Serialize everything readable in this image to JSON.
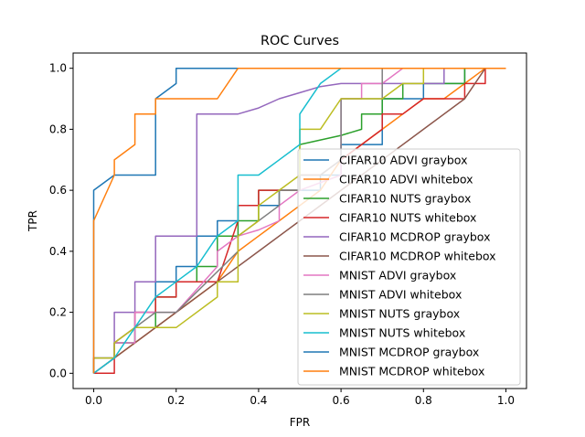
{
  "chart_data": {
    "type": "line",
    "title": "ROC Curves",
    "xlabel": "FPR",
    "ylabel": "TPR",
    "xlim": [
      -0.05,
      1.05
    ],
    "ylim": [
      -0.05,
      1.05
    ],
    "xticks": [
      "0.0",
      "0.2",
      "0.4",
      "0.6",
      "0.8",
      "1.0"
    ],
    "yticks": [
      "0.0",
      "0.2",
      "0.4",
      "0.6",
      "0.8",
      "1.0"
    ],
    "grid": false,
    "legend_position": "lower-right",
    "series": [
      {
        "name": "CIFAR10 ADVI graybox",
        "color": "#1f77b4",
        "points": [
          [
            0,
            0
          ],
          [
            0,
            0.05
          ],
          [
            0.05,
            0.05
          ],
          [
            0.05,
            0.1
          ],
          [
            0.1,
            0.1
          ],
          [
            0.1,
            0.2
          ],
          [
            0.15,
            0.2
          ],
          [
            0.15,
            0.3
          ],
          [
            0.2,
            0.3
          ],
          [
            0.2,
            0.35
          ],
          [
            0.25,
            0.35
          ],
          [
            0.25,
            0.45
          ],
          [
            0.3,
            0.45
          ],
          [
            0.3,
            0.5
          ],
          [
            0.35,
            0.5
          ],
          [
            0.35,
            0.55
          ],
          [
            0.45,
            0.55
          ],
          [
            0.45,
            0.6
          ],
          [
            0.55,
            0.6
          ],
          [
            0.55,
            0.65
          ],
          [
            0.6,
            0.65
          ],
          [
            0.6,
            0.75
          ],
          [
            0.7,
            0.75
          ],
          [
            0.7,
            0.9
          ],
          [
            0.8,
            0.9
          ],
          [
            0.8,
            0.95
          ],
          [
            0.9,
            0.95
          ],
          [
            0.9,
            1
          ],
          [
            1,
            1
          ]
        ]
      },
      {
        "name": "CIFAR10 ADVI whitebox",
        "color": "#ff7f0e",
        "points": [
          [
            0,
            0
          ],
          [
            0.05,
            0.05
          ],
          [
            0.1,
            0.1
          ],
          [
            0.15,
            0.15
          ],
          [
            0.2,
            0.2
          ],
          [
            0.25,
            0.25
          ],
          [
            0.3,
            0.3
          ],
          [
            0.35,
            0.4
          ],
          [
            0.4,
            0.45
          ],
          [
            0.45,
            0.5
          ],
          [
            0.5,
            0.55
          ],
          [
            0.55,
            0.6
          ],
          [
            0.6,
            0.7
          ],
          [
            0.65,
            0.75
          ],
          [
            0.7,
            0.8
          ],
          [
            0.75,
            0.85
          ],
          [
            0.8,
            0.9
          ],
          [
            0.85,
            0.9
          ],
          [
            0.9,
            0.95
          ],
          [
            0.95,
            1
          ],
          [
            1,
            1
          ]
        ]
      },
      {
        "name": "CIFAR10 NUTS graybox",
        "color": "#2ca02c",
        "points": [
          [
            0,
            0
          ],
          [
            0.05,
            0.05
          ],
          [
            0.05,
            0.1
          ],
          [
            0.1,
            0.1
          ],
          [
            0.1,
            0.15
          ],
          [
            0.15,
            0.15
          ],
          [
            0.15,
            0.25
          ],
          [
            0.2,
            0.25
          ],
          [
            0.2,
            0.3
          ],
          [
            0.25,
            0.3
          ],
          [
            0.25,
            0.35
          ],
          [
            0.3,
            0.35
          ],
          [
            0.3,
            0.45
          ],
          [
            0.35,
            0.45
          ],
          [
            0.35,
            0.5
          ],
          [
            0.4,
            0.5
          ],
          [
            0.4,
            0.6
          ],
          [
            0.5,
            0.6
          ],
          [
            0.5,
            0.75
          ],
          [
            0.6,
            0.78
          ],
          [
            0.65,
            0.8
          ],
          [
            0.65,
            0.85
          ],
          [
            0.7,
            0.85
          ],
          [
            0.7,
            0.9
          ],
          [
            0.75,
            0.9
          ],
          [
            0.75,
            0.95
          ],
          [
            0.9,
            0.95
          ],
          [
            0.9,
            1
          ],
          [
            1,
            1
          ]
        ]
      },
      {
        "name": "CIFAR10 NUTS whitebox",
        "color": "#d62728",
        "points": [
          [
            0,
            0
          ],
          [
            0.05,
            0
          ],
          [
            0.05,
            0.1
          ],
          [
            0.1,
            0.15
          ],
          [
            0.1,
            0.2
          ],
          [
            0.15,
            0.2
          ],
          [
            0.15,
            0.25
          ],
          [
            0.2,
            0.25
          ],
          [
            0.2,
            0.3
          ],
          [
            0.3,
            0.3
          ],
          [
            0.35,
            0.5
          ],
          [
            0.35,
            0.55
          ],
          [
            0.4,
            0.55
          ],
          [
            0.4,
            0.6
          ],
          [
            0.5,
            0.6
          ],
          [
            0.5,
            0.65
          ],
          [
            0.55,
            0.65
          ],
          [
            0.6,
            0.7
          ],
          [
            0.65,
            0.75
          ],
          [
            0.7,
            0.8
          ],
          [
            0.7,
            0.85
          ],
          [
            0.75,
            0.85
          ],
          [
            0.8,
            0.9
          ],
          [
            0.85,
            0.9
          ],
          [
            0.9,
            0.9
          ],
          [
            0.9,
            0.95
          ],
          [
            0.95,
            0.95
          ],
          [
            0.95,
            1
          ],
          [
            1,
            1
          ]
        ]
      },
      {
        "name": "CIFAR10 MCDROP graybox",
        "color": "#9467bd",
        "points": [
          [
            0,
            0
          ],
          [
            0,
            0.05
          ],
          [
            0.05,
            0.05
          ],
          [
            0.05,
            0.2
          ],
          [
            0.1,
            0.2
          ],
          [
            0.1,
            0.3
          ],
          [
            0.15,
            0.3
          ],
          [
            0.15,
            0.45
          ],
          [
            0.25,
            0.45
          ],
          [
            0.25,
            0.85
          ],
          [
            0.35,
            0.85
          ],
          [
            0.4,
            0.87
          ],
          [
            0.45,
            0.9
          ],
          [
            0.5,
            0.92
          ],
          [
            0.55,
            0.94
          ],
          [
            0.6,
            0.95
          ],
          [
            0.85,
            0.95
          ],
          [
            0.85,
            1
          ],
          [
            1,
            1
          ]
        ]
      },
      {
        "name": "CIFAR10 MCDROP whitebox",
        "color": "#8c564b",
        "points": [
          [
            0,
            0
          ],
          [
            0.1,
            0.1
          ],
          [
            0.2,
            0.2
          ],
          [
            0.3,
            0.3
          ],
          [
            0.4,
            0.4
          ],
          [
            0.5,
            0.5
          ],
          [
            0.6,
            0.6
          ],
          [
            0.7,
            0.7
          ],
          [
            0.8,
            0.8
          ],
          [
            0.9,
            0.9
          ],
          [
            0.95,
            1
          ],
          [
            1,
            1
          ]
        ]
      },
      {
        "name": "MNIST ADVI graybox",
        "color": "#e377c2",
        "points": [
          [
            0,
            0
          ],
          [
            0.05,
            0.05
          ],
          [
            0.05,
            0.1
          ],
          [
            0.1,
            0.1
          ],
          [
            0.1,
            0.2
          ],
          [
            0.2,
            0.2
          ],
          [
            0.3,
            0.35
          ],
          [
            0.3,
            0.4
          ],
          [
            0.35,
            0.45
          ],
          [
            0.4,
            0.47
          ],
          [
            0.45,
            0.5
          ],
          [
            0.45,
            0.55
          ],
          [
            0.5,
            0.6
          ],
          [
            0.6,
            0.65
          ],
          [
            0.6,
            0.9
          ],
          [
            0.65,
            0.9
          ],
          [
            0.65,
            0.95
          ],
          [
            0.7,
            0.95
          ],
          [
            0.75,
            1
          ],
          [
            1,
            1
          ]
        ]
      },
      {
        "name": "MNIST ADVI whitebox",
        "color": "#7f7f7f",
        "points": [
          [
            0,
            0
          ],
          [
            0,
            0.05
          ],
          [
            0.05,
            0.05
          ],
          [
            0.05,
            0.1
          ],
          [
            0.15,
            0.2
          ],
          [
            0.2,
            0.2
          ],
          [
            0.35,
            0.4
          ],
          [
            0.35,
            0.45
          ],
          [
            0.45,
            0.55
          ],
          [
            0.45,
            0.6
          ],
          [
            0.5,
            0.6
          ],
          [
            0.5,
            0.65
          ],
          [
            0.55,
            0.65
          ],
          [
            0.6,
            0.7
          ],
          [
            0.6,
            0.9
          ],
          [
            0.7,
            0.9
          ],
          [
            0.7,
            1
          ],
          [
            1,
            1
          ]
        ]
      },
      {
        "name": "MNIST NUTS graybox",
        "color": "#bcbd22",
        "points": [
          [
            0,
            0
          ],
          [
            0,
            0.05
          ],
          [
            0.05,
            0.05
          ],
          [
            0.05,
            0.1
          ],
          [
            0.1,
            0.15
          ],
          [
            0.2,
            0.15
          ],
          [
            0.3,
            0.25
          ],
          [
            0.3,
            0.3
          ],
          [
            0.35,
            0.3
          ],
          [
            0.35,
            0.45
          ],
          [
            0.4,
            0.5
          ],
          [
            0.4,
            0.55
          ],
          [
            0.45,
            0.6
          ],
          [
            0.5,
            0.65
          ],
          [
            0.5,
            0.8
          ],
          [
            0.55,
            0.8
          ],
          [
            0.6,
            0.9
          ],
          [
            0.7,
            0.9
          ],
          [
            0.75,
            0.95
          ],
          [
            0.8,
            0.95
          ],
          [
            0.8,
            1
          ],
          [
            1,
            1
          ]
        ]
      },
      {
        "name": "MNIST NUTS whitebox",
        "color": "#17becf",
        "points": [
          [
            0,
            0
          ],
          [
            0.05,
            0.05
          ],
          [
            0.1,
            0.15
          ],
          [
            0.15,
            0.25
          ],
          [
            0.2,
            0.3
          ],
          [
            0.25,
            0.35
          ],
          [
            0.3,
            0.45
          ],
          [
            0.35,
            0.5
          ],
          [
            0.35,
            0.65
          ],
          [
            0.4,
            0.65
          ],
          [
            0.45,
            0.7
          ],
          [
            0.5,
            0.75
          ],
          [
            0.5,
            0.85
          ],
          [
            0.55,
            0.95
          ],
          [
            0.6,
            1
          ],
          [
            1,
            1
          ]
        ]
      },
      {
        "name": "MNIST MCDROP graybox",
        "color": "#1f77b4",
        "points": [
          [
            0,
            0
          ],
          [
            0,
            0.6
          ],
          [
            0.05,
            0.65
          ],
          [
            0.15,
            0.65
          ],
          [
            0.15,
            0.9
          ],
          [
            0.2,
            0.95
          ],
          [
            0.2,
            1
          ],
          [
            1,
            1
          ]
        ]
      },
      {
        "name": "MNIST MCDROP whitebox",
        "color": "#ff7f0e",
        "points": [
          [
            0,
            0
          ],
          [
            0,
            0.5
          ],
          [
            0.05,
            0.65
          ],
          [
            0.05,
            0.7
          ],
          [
            0.1,
            0.75
          ],
          [
            0.1,
            0.85
          ],
          [
            0.15,
            0.85
          ],
          [
            0.15,
            0.9
          ],
          [
            0.3,
            0.9
          ],
          [
            0.35,
            1
          ],
          [
            1,
            1
          ]
        ]
      }
    ]
  }
}
